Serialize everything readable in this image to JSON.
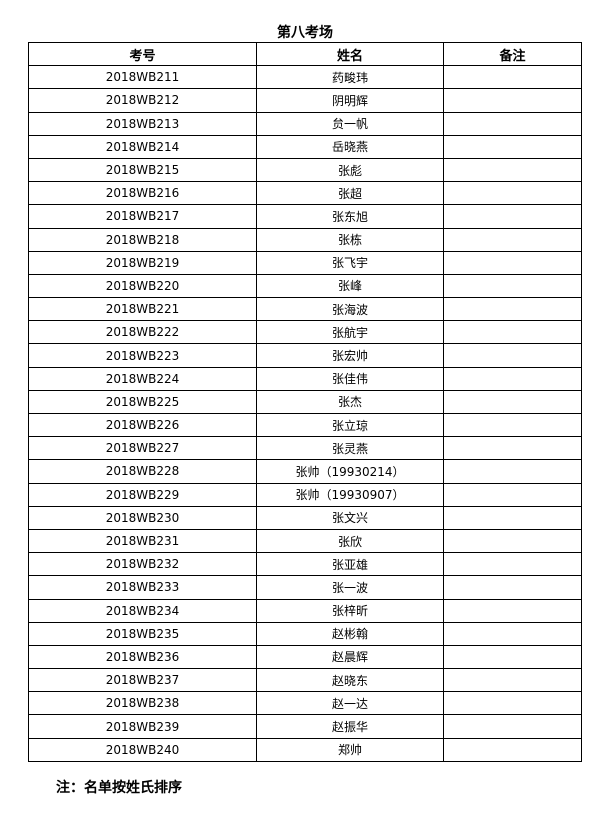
{
  "title": "第八考场",
  "headers": [
    "考号",
    "姓名",
    "备注"
  ],
  "rows": [
    [
      "2018WB211",
      "药畯玮",
      ""
    ],
    [
      "2018WB212",
      "阴明辉",
      ""
    ],
    [
      "2018WB213",
      "贠一帆",
      ""
    ],
    [
      "2018WB214",
      "岳晓燕",
      ""
    ],
    [
      "2018WB215",
      "张彪",
      ""
    ],
    [
      "2018WB216",
      "张超",
      ""
    ],
    [
      "2018WB217",
      "张东旭",
      ""
    ],
    [
      "2018WB218",
      "张栋",
      ""
    ],
    [
      "2018WB219",
      "张飞宇",
      ""
    ],
    [
      "2018WB220",
      "张峰",
      ""
    ],
    [
      "2018WB221",
      "张海波",
      ""
    ],
    [
      "2018WB222",
      "张航宇",
      ""
    ],
    [
      "2018WB223",
      "张宏帅",
      ""
    ],
    [
      "2018WB224",
      "张佳伟",
      ""
    ],
    [
      "2018WB225",
      "张杰",
      ""
    ],
    [
      "2018WB226",
      "张立琼",
      ""
    ],
    [
      "2018WB227",
      "张灵燕",
      ""
    ],
    [
      "2018WB228",
      "张帅（19930214）",
      ""
    ],
    [
      "2018WB229",
      "张帅（19930907）",
      ""
    ],
    [
      "2018WB230",
      "张文兴",
      ""
    ],
    [
      "2018WB231",
      "张欣",
      ""
    ],
    [
      "2018WB232",
      "张亚雄",
      ""
    ],
    [
      "2018WB233",
      "张一波",
      ""
    ],
    [
      "2018WB234",
      "张梓昕",
      ""
    ],
    [
      "2018WB235",
      "赵彬翰",
      ""
    ],
    [
      "2018WB236",
      "赵晨辉",
      ""
    ],
    [
      "2018WB237",
      "赵晓东",
      ""
    ],
    [
      "2018WB238",
      "赵一达",
      ""
    ],
    [
      "2018WB239",
      "赵振华",
      ""
    ],
    [
      "2018WB240",
      "郑帅",
      ""
    ]
  ],
  "note": "注：名单按姓氏排序"
}
